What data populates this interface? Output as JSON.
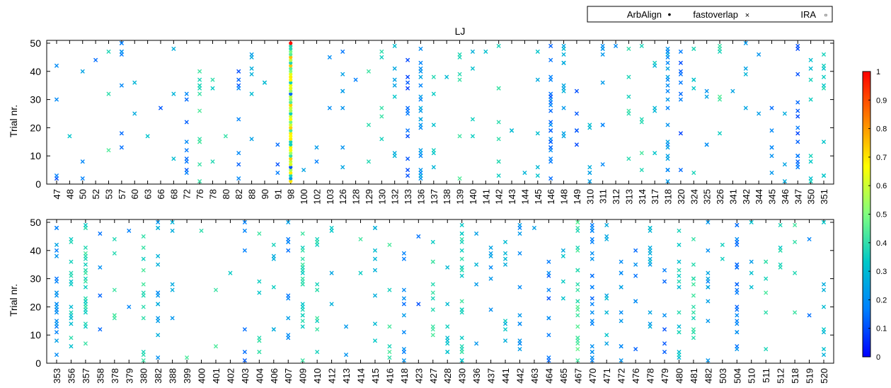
{
  "chart_data": [
    {
      "type": "scatter",
      "title": "LJ",
      "ylabel": "Trial nr.",
      "ylim": [
        0,
        51
      ],
      "yticks": [
        0,
        10,
        20,
        30,
        40,
        50
      ],
      "categories": [
        "47",
        "48",
        "50",
        "52",
        "53",
        "57",
        "60",
        "63",
        "66",
        "68",
        "72",
        "76",
        "78",
        "80",
        "82",
        "88",
        "90",
        "91",
        "98",
        "100",
        "102",
        "103",
        "126",
        "128",
        "129",
        "130",
        "132",
        "133",
        "136",
        "137",
        "138",
        "139",
        "140",
        "141",
        "142",
        "143",
        "144",
        "145",
        "146",
        "148",
        "149",
        "310",
        "311",
        "312",
        "313",
        "314",
        "317",
        "318",
        "320",
        "324",
        "325",
        "326",
        "341",
        "342",
        "344",
        "345",
        "346",
        "347",
        "350",
        "351"
      ],
      "markers_per_category": [
        4,
        1,
        3,
        1,
        3,
        8,
        2,
        1,
        1,
        3,
        9,
        12,
        3,
        1,
        8,
        6,
        2,
        3,
        0,
        1,
        2,
        2,
        7,
        1,
        3,
        5,
        7,
        12,
        22,
        6,
        1,
        6,
        4,
        1,
        8,
        2,
        1,
        5,
        24,
        12,
        5,
        6,
        8,
        1,
        6,
        5,
        5,
        24,
        9,
        6,
        4,
        6,
        1,
        4,
        2,
        6,
        3,
        15,
        8,
        9
      ],
      "series": [
        {
          "name": "fastoverlap",
          "marker": "x"
        },
        {
          "name": "ArbAlign",
          "marker": "dot",
          "category": "98",
          "trials": [
            1,
            2,
            3,
            4,
            5,
            6,
            7,
            8,
            9,
            10,
            11,
            12,
            13,
            14,
            15,
            16,
            17,
            18,
            19,
            20,
            21,
            22,
            23,
            24,
            25,
            26,
            27,
            28,
            29,
            30,
            31,
            32,
            33,
            34,
            35,
            36,
            37,
            38,
            39,
            40,
            41,
            42,
            43,
            44,
            45,
            46,
            47,
            48,
            49,
            50
          ]
        },
        {
          "name": "IRA",
          "marker": "square"
        }
      ]
    },
    {
      "type": "scatter",
      "ylabel": "Trial nr.",
      "ylim": [
        0,
        51
      ],
      "yticks": [
        0,
        10,
        20,
        30,
        40,
        50
      ],
      "categories": [
        "353",
        "356",
        "357",
        "358",
        "378",
        "379",
        "380",
        "382",
        "388",
        "399",
        "400",
        "401",
        "402",
        "403",
        "404",
        "406",
        "407",
        "409",
        "410",
        "412",
        "413",
        "414",
        "415",
        "416",
        "418",
        "423",
        "427",
        "428",
        "430",
        "436",
        "437",
        "441",
        "442",
        "463",
        "464",
        "465",
        "467",
        "470",
        "471",
        "472",
        "476",
        "478",
        "479",
        "480",
        "481",
        "482",
        "503",
        "504",
        "510",
        "511",
        "512",
        "518",
        "519",
        "520"
      ],
      "markers_per_category": [
        22,
        14,
        25,
        4,
        6,
        2,
        12,
        14,
        5,
        1,
        1,
        2,
        1,
        6,
        8,
        6,
        10,
        22,
        12,
        4,
        2,
        2,
        8,
        6,
        10,
        2,
        10,
        8,
        24,
        4,
        6,
        8,
        12,
        1,
        10,
        4,
        24,
        22,
        8,
        10,
        6,
        12,
        6,
        14,
        14,
        10,
        2,
        24,
        4,
        6,
        6,
        4,
        2,
        8
      ],
      "series": [
        {
          "name": "fastoverlap",
          "marker": "x"
        }
      ]
    }
  ],
  "legend": {
    "position": "top-right",
    "entries": [
      {
        "label": "ArbAlign",
        "symbol": "•"
      },
      {
        "label": "fastoverlap",
        "symbol": "×"
      },
      {
        "label": "IRA",
        "symbol": "▫"
      }
    ]
  },
  "colorbar": {
    "range": [
      0,
      1
    ],
    "ticks": [
      "0",
      "0.1",
      "0.2",
      "0.3",
      "0.4",
      "0.5",
      "0.6",
      "0.7",
      "0.8",
      "0.9",
      "1"
    ],
    "colors": [
      "#0000ff",
      "#0080ff",
      "#00c8c8",
      "#80ff80",
      "#ffff00",
      "#ff8000",
      "#ff0000"
    ]
  }
}
